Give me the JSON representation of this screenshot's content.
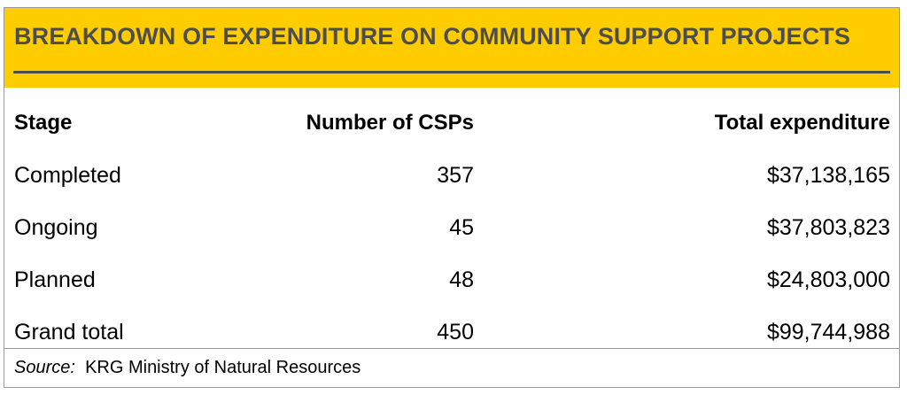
{
  "title": "BREAKDOWN OF EXPENDITURE  ON COMMUNITY SUPPORT PROJECTS",
  "colors": {
    "header_bg": "#ffcc00",
    "title_text": "#4d4d4d",
    "rule": "#4d4d4d",
    "border": "#9a9a9a"
  },
  "table": {
    "headers": [
      "Stage",
      "Number of CSPs",
      "Total expenditure"
    ],
    "rows": [
      {
        "stage": "Completed",
        "count": "357",
        "expenditure": "$37,138,165"
      },
      {
        "stage": "Ongoing",
        "count": "45",
        "expenditure": "$37,803,823"
      },
      {
        "stage": "Planned",
        "count": "48",
        "expenditure": "$24,803,000"
      },
      {
        "stage": "Grand total",
        "count": "450",
        "expenditure": "$99,744,988"
      }
    ]
  },
  "source": {
    "label": "Source:",
    "text": "KRG Ministry of Natural Resources"
  }
}
